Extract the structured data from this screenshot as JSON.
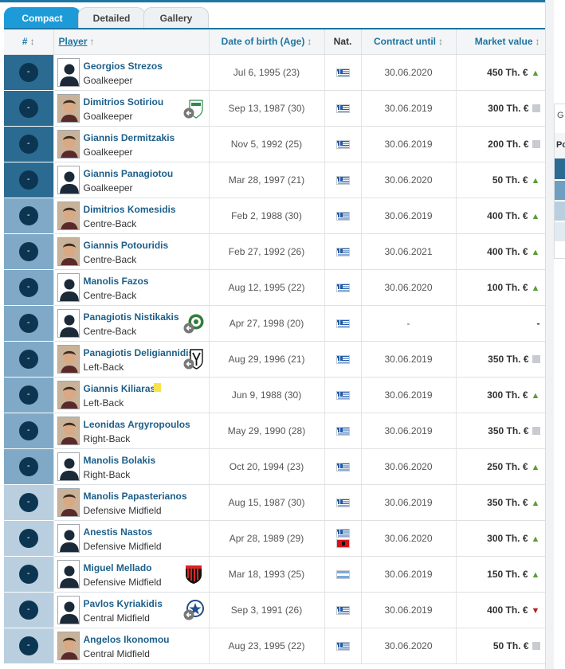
{
  "tabs": [
    {
      "label": "Compact",
      "active": true
    },
    {
      "label": "Detailed",
      "active": false
    },
    {
      "label": "Gallery",
      "active": false
    }
  ],
  "columns": {
    "number": "#",
    "player": "Player",
    "dob": "Date of birth (Age)",
    "nat": "Nat.",
    "contract": "Contract until",
    "value": "Market value"
  },
  "sort_arrows": {
    "both": "↕",
    "up": "↑"
  },
  "number_placeholder": "-",
  "players": [
    {
      "name": "Georgios Strezos",
      "position": "Goalkeeper",
      "dob": "Jul 6, 1995 (23)",
      "nat": [
        "gr"
      ],
      "contract": "30.06.2020",
      "value": "450 Th. €",
      "trend": "up",
      "group": "gk",
      "photo": false
    },
    {
      "name": "Dimitrios Sotiriou",
      "position": "Goalkeeper",
      "dob": "Sep 13, 1987 (30)",
      "nat": [
        "gr"
      ],
      "contract": "30.06.2019",
      "value": "300 Th. €",
      "trend": "flat",
      "group": "gk",
      "photo": true,
      "club": "loan-green"
    },
    {
      "name": "Giannis Dermitzakis",
      "position": "Goalkeeper",
      "dob": "Nov 5, 1992 (25)",
      "nat": [
        "gr"
      ],
      "contract": "30.06.2019",
      "value": "200 Th. €",
      "trend": "flat",
      "group": "gk",
      "photo": true
    },
    {
      "name": "Giannis Panagiotou",
      "position": "Goalkeeper",
      "dob": "Mar 28, 1997 (21)",
      "nat": [
        "gr"
      ],
      "contract": "30.06.2020",
      "value": "50 Th. €",
      "trend": "up",
      "group": "gk",
      "photo": false
    },
    {
      "name": "Dimitrios Komesidis",
      "position": "Centre-Back",
      "dob": "Feb 2, 1988 (30)",
      "nat": [
        "gr"
      ],
      "contract": "30.06.2019",
      "value": "400 Th. €",
      "trend": "up",
      "group": "def",
      "photo": true
    },
    {
      "name": "Giannis Potouridis",
      "position": "Centre-Back",
      "dob": "Feb 27, 1992 (26)",
      "nat": [
        "gr"
      ],
      "contract": "30.06.2021",
      "value": "400 Th. €",
      "trend": "up",
      "group": "def",
      "photo": true
    },
    {
      "name": "Manolis Fazos",
      "position": "Centre-Back",
      "dob": "Aug 12, 1995 (22)",
      "nat": [
        "gr"
      ],
      "contract": "30.06.2020",
      "value": "100 Th. €",
      "trend": "up",
      "group": "def",
      "photo": false
    },
    {
      "name": "Panagiotis Nistikakis",
      "position": "Centre-Back",
      "dob": "Apr 27, 1998 (20)",
      "nat": [
        "gr"
      ],
      "contract": "-",
      "value": "-",
      "trend": "none",
      "group": "def",
      "photo": false,
      "club": "loan-green2"
    },
    {
      "name": "Panagiotis Deligiannidis",
      "position": "Left-Back",
      "dob": "Aug 29, 1996 (21)",
      "nat": [
        "gr"
      ],
      "contract": "30.06.2019",
      "value": "350 Th. €",
      "trend": "flat",
      "group": "def",
      "photo": true,
      "club": "loan-paok"
    },
    {
      "name": "Giannis Kiliaras",
      "position": "Left-Back",
      "dob": "Jun 9, 1988 (30)",
      "nat": [
        "gr"
      ],
      "contract": "30.06.2019",
      "value": "300 Th. €",
      "trend": "up",
      "group": "def",
      "photo": true,
      "card": true
    },
    {
      "name": "Leonidas Argyropoulos",
      "position": "Right-Back",
      "dob": "May 29, 1990 (28)",
      "nat": [
        "gr"
      ],
      "contract": "30.06.2019",
      "value": "350 Th. €",
      "trend": "flat",
      "group": "def",
      "photo": true
    },
    {
      "name": "Manolis Bolakis",
      "position": "Right-Back",
      "dob": "Oct 20, 1994 (23)",
      "nat": [
        "gr"
      ],
      "contract": "30.06.2020",
      "value": "250 Th. €",
      "trend": "up",
      "group": "def",
      "photo": false
    },
    {
      "name": "Manolis Papasterianos",
      "position": "Defensive Midfield",
      "dob": "Aug 15, 1987 (30)",
      "nat": [
        "gr"
      ],
      "contract": "30.06.2019",
      "value": "350 Th. €",
      "trend": "up",
      "group": "mid",
      "photo": true
    },
    {
      "name": "Anestis Nastos",
      "position": "Defensive Midfield",
      "dob": "Apr 28, 1989 (29)",
      "nat": [
        "gr",
        "al"
      ],
      "contract": "30.06.2020",
      "value": "300 Th. €",
      "trend": "up",
      "group": "mid",
      "photo": false
    },
    {
      "name": "Miguel Mellado",
      "position": "Defensive Midfield",
      "dob": "Mar 18, 1993 (25)",
      "nat": [
        "ar"
      ],
      "contract": "30.06.2019",
      "value": "150 Th. €",
      "trend": "up",
      "group": "mid",
      "photo": false,
      "club": "club-stripes"
    },
    {
      "name": "Pavlos Kyriakidis",
      "position": "Central Midfield",
      "dob": "Sep 3, 1991 (26)",
      "nat": [
        "gr"
      ],
      "contract": "30.06.2019",
      "value": "400 Th. €",
      "trend": "down",
      "group": "mid",
      "photo": false,
      "club": "loan-star"
    },
    {
      "name": "Angelos Ikonomou",
      "position": "Central Midfield",
      "dob": "Aug 23, 1995 (22)",
      "nat": [
        "gr"
      ],
      "contract": "30.06.2020",
      "value": "50 Th. €",
      "trend": "flat",
      "group": "mid",
      "photo": true
    }
  ],
  "side_panel": {
    "header": "G",
    "subheader": "Po"
  },
  "colors": {
    "accent": "#1d75a3",
    "tab_active": "#1d9bd9",
    "gk": "#2c6b91",
    "def": "#7fa9c6",
    "mid": "#b9cfdf",
    "trend_up": "#5a9e2f",
    "trend_down": "#b02222"
  }
}
